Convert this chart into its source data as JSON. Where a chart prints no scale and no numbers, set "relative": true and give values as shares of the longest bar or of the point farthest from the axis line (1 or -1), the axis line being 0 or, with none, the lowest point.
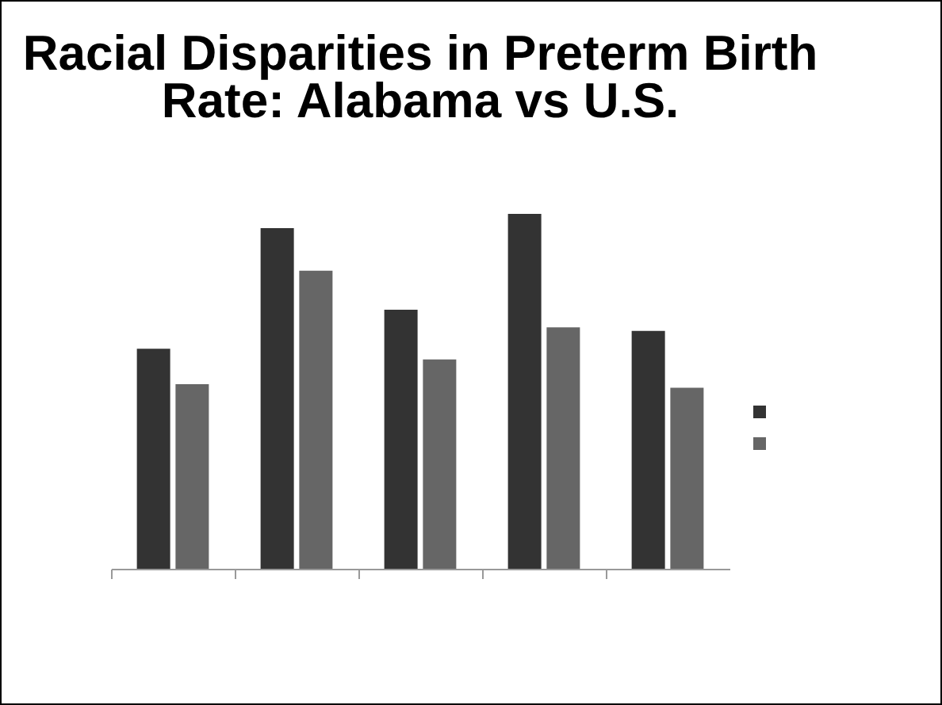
{
  "chart_data": {
    "type": "bar",
    "title": "Racial Disparities in Preterm Birth Rate: Alabama vs U.S.",
    "relative": true,
    "categories": [
      null,
      null,
      null,
      null,
      null
    ],
    "series": [
      {
        "color": "#333333",
        "values": [
          0.62,
          0.96,
          0.73,
          1,
          0.67
        ]
      },
      {
        "color": "#666666",
        "values": [
          0.52,
          0.84,
          0.59,
          0.68,
          0.51
        ]
      }
    ],
    "grid": false
  }
}
